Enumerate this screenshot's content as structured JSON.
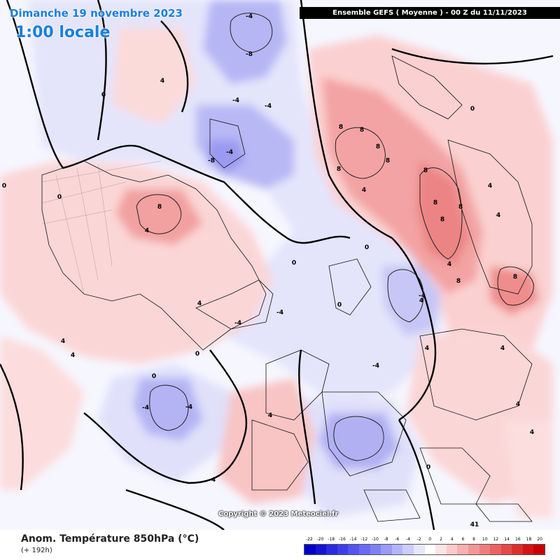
{
  "header": {
    "date": "Dimanche 19 novembre 2023",
    "local_time": "1:00 locale",
    "ensemble": "Ensemble GEFS  ( Moyenne )  -  00 Z du 11/11/2023"
  },
  "footer": {
    "parameter": "Anom. Température 850hPa (°C)",
    "lead_time": "(+ 192h)",
    "copyright": "Copyright © 2023 Meteociel.fr"
  },
  "legend": {
    "ticks": [
      "-22",
      "-20",
      "-18",
      "-16",
      "-14",
      "-12",
      "-10",
      "-8",
      "-6",
      "-4",
      "-2",
      "0",
      "2",
      "4",
      "6",
      "8",
      "10",
      "12",
      "14",
      "16",
      "18",
      "20"
    ],
    "colors": [
      "#0000c8",
      "#1414d2",
      "#2a2ae0",
      "#3e3ee8",
      "#5454ee",
      "#6a6af2",
      "#8080f6",
      "#9a9af8",
      "#b4b4fa",
      "#cdcdfc",
      "#e6e6fe",
      "#ffffff",
      "#fde4e4",
      "#fbcaca",
      "#f8b0b0",
      "#f49696",
      "#ef7c7c",
      "#ea6262",
      "#e44848",
      "#dd2e2e",
      "#d41414",
      "#c80000"
    ]
  },
  "map_labels": [
    "0",
    "0",
    "0",
    "0",
    "0",
    "0",
    "0",
    "0",
    "0",
    "0",
    "4",
    "4",
    "4",
    "4",
    "4",
    "4",
    "4",
    "4",
    "4",
    "4",
    "4",
    "4",
    "4",
    "4",
    "4",
    "4",
    "-4",
    "-4",
    "-4",
    "-4",
    "-4",
    "-4",
    "-4",
    "-4",
    "-4",
    "-4",
    "8",
    "8",
    "8",
    "8",
    "8",
    "8",
    "8",
    "8",
    "8",
    "8",
    "8",
    "8",
    "-8",
    "-8",
    "41"
  ]
}
